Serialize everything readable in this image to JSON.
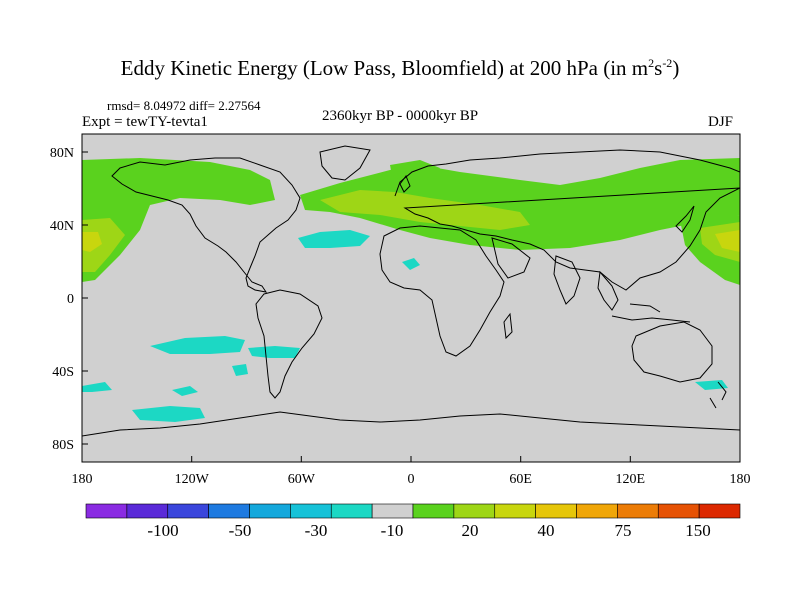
{
  "title": {
    "main": "Eddy Kinetic Energy (Low Pass, Bloomfield) at 200 hPa (in m",
    "sup1": "2",
    "mid": "s",
    "sup2": "-2",
    "close": ")"
  },
  "stats": "rmsd= 8.04972  diff= 2.27564",
  "experiment": "Expt = tewTY-tevta1",
  "period": "2360kyr BP - 0000kyr BP",
  "season": "DJF",
  "colors": {
    "land_ocean_background": "#d0d0d0",
    "coastline": "#000000"
  },
  "map_axes": {
    "lat_ticks": [
      "80N",
      "40N",
      "0",
      "40S",
      "80S"
    ],
    "lon_ticks": [
      "180",
      "120W",
      "60W",
      "0",
      "60E",
      "120E",
      "180"
    ]
  },
  "colorbar": {
    "colors": [
      "#8a2be2",
      "#5a2ad8",
      "#3a46dc",
      "#1e7ae0",
      "#14a8dc",
      "#16c2d8",
      "#1cd8c4",
      "#d0d0d0",
      "#5ad21e",
      "#9ed616",
      "#c8d60e",
      "#e6c60a",
      "#f0a608",
      "#ec7c06",
      "#e65204",
      "#dc2800"
    ],
    "labels": [
      "-100",
      "-50",
      "-30",
      "-10",
      "20",
      "40",
      "75",
      "150"
    ]
  }
}
